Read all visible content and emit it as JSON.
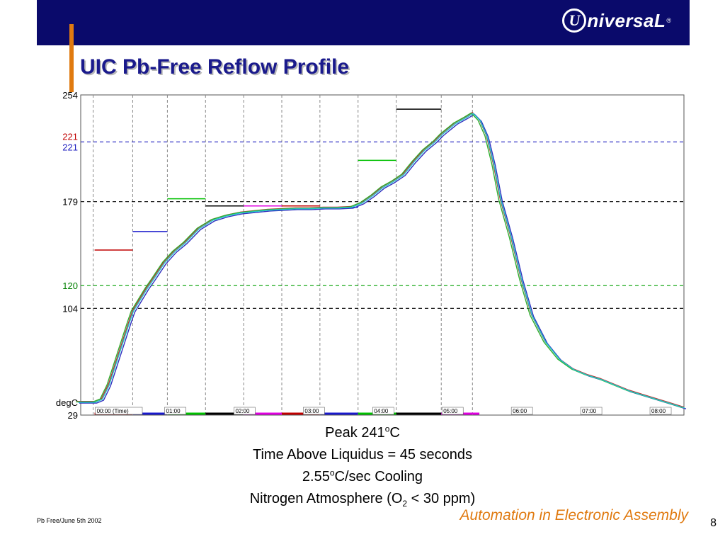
{
  "header": {
    "logo_mark": "U",
    "logo_text": "niversaL",
    "logo_reg": "®",
    "slide_title": "UIC Pb-Free Reflow Profile"
  },
  "chart_data": {
    "type": "line",
    "ylabel": "degC",
    "ylim": [
      29,
      254
    ],
    "xlim": [
      -0.2,
      8.5
    ],
    "x_unit": "minutes",
    "x_tick_labels": [
      {
        "x": 0,
        "label": "00:00 (Time)"
      },
      {
        "x": 1,
        "label": "01:00"
      },
      {
        "x": 2,
        "label": "02:00"
      },
      {
        "x": 3,
        "label": "03:00"
      },
      {
        "x": 4,
        "label": "04:00"
      },
      {
        "x": 5,
        "label": "05:00"
      },
      {
        "x": 6,
        "label": "06:00"
      },
      {
        "x": 7,
        "label": "07:00"
      },
      {
        "x": 8,
        "label": "08:00"
      }
    ],
    "y_labels": [
      {
        "value": 254,
        "label": "254",
        "color": "#000000"
      },
      {
        "value": 221,
        "label": "221",
        "color": "#c00000"
      },
      {
        "value": 221,
        "label": "221",
        "color": "#2020c0"
      },
      {
        "value": 179,
        "label": "179",
        "color": "#000000"
      },
      {
        "value": 120,
        "label": "120",
        "color": "#008000"
      },
      {
        "value": 104,
        "label": "104",
        "color": "#000000"
      },
      {
        "value": 29,
        "label": "29",
        "color": "#000000"
      }
    ],
    "reference_lines": [
      {
        "y": 221,
        "color": "#2020c0"
      },
      {
        "y": 179,
        "color": "#000000"
      },
      {
        "y": 120,
        "color": "#00a000"
      },
      {
        "y": 104,
        "color": "#000000"
      }
    ],
    "zone_boundaries": [
      -0.02,
      0.55,
      1.05,
      1.6,
      2.15,
      2.7,
      3.25,
      3.8,
      4.35,
      5.0,
      5.45
    ],
    "zone_setpoints": [
      {
        "x1": 0.0,
        "x2": 0.55,
        "y": 145,
        "color": "#c00000"
      },
      {
        "x1": 0.55,
        "x2": 1.05,
        "y": 158,
        "color": "#1a1acc"
      },
      {
        "x1": 1.05,
        "x2": 1.6,
        "y": 181,
        "color": "#00c000"
      },
      {
        "x1": 1.6,
        "x2": 2.15,
        "y": 176,
        "color": "#000000"
      },
      {
        "x1": 2.15,
        "x2": 2.7,
        "y": 176,
        "color": "#e000e0"
      },
      {
        "x1": 2.7,
        "x2": 3.25,
        "y": 176,
        "color": "#c00000"
      },
      {
        "x1": 3.25,
        "x2": 3.8,
        "y": 175,
        "color": "#1a1acc"
      },
      {
        "x1": 3.8,
        "x2": 4.35,
        "y": 208,
        "color": "#00c000"
      },
      {
        "x1": 4.35,
        "x2": 5.0,
        "y": 244,
        "color": "#000000"
      }
    ],
    "zone_bars": [
      {
        "x1": 0.0,
        "x2": 0.55,
        "color": "#c00000"
      },
      {
        "x1": 0.55,
        "x2": 1.05,
        "color": "#1a1acc"
      },
      {
        "x1": 1.05,
        "x2": 1.6,
        "color": "#00c000"
      },
      {
        "x1": 1.6,
        "x2": 2.15,
        "color": "#000000"
      },
      {
        "x1": 2.15,
        "x2": 2.7,
        "color": "#e000e0"
      },
      {
        "x1": 2.7,
        "x2": 3.25,
        "color": "#c00000"
      },
      {
        "x1": 3.25,
        "x2": 3.8,
        "color": "#1a1acc"
      },
      {
        "x1": 3.8,
        "x2": 4.35,
        "color": "#00c000"
      },
      {
        "x1": 4.35,
        "x2": 5.0,
        "color": "#000000"
      },
      {
        "x1": 5.0,
        "x2": 5.55,
        "color": "#e000e0"
      }
    ],
    "series": [
      {
        "color": "#c03030",
        "offset": 0.0,
        "dy": 0.6
      },
      {
        "color": "#3030c0",
        "offset": 0.03,
        "dy": -0.6
      },
      {
        "color": "#30b030",
        "offset": -0.02,
        "dy": 0.3
      },
      {
        "color": "#20c8c8",
        "offset": 0.01,
        "dy": 0.0
      }
    ],
    "profile": {
      "x": [
        -0.25,
        0.0,
        0.1,
        0.2,
        0.3,
        0.4,
        0.5,
        0.55,
        0.65,
        0.75,
        0.85,
        1.0,
        1.15,
        1.3,
        1.5,
        1.7,
        1.9,
        2.1,
        2.3,
        2.5,
        2.7,
        2.9,
        3.1,
        3.3,
        3.5,
        3.7,
        3.85,
        4.0,
        4.15,
        4.3,
        4.45,
        4.6,
        4.75,
        4.9,
        5.0,
        5.1,
        5.2,
        5.35,
        5.45,
        5.55,
        5.65,
        5.75,
        5.85,
        6.0,
        6.15,
        6.3,
        6.5,
        6.7,
        6.9,
        7.1,
        7.3,
        7.5,
        7.7,
        7.9,
        8.1,
        8.3,
        8.5
      ],
      "y": [
        38,
        38,
        40,
        50,
        65,
        80,
        95,
        102,
        110,
        118,
        125,
        136,
        144,
        150,
        160,
        166,
        169,
        171,
        172,
        173,
        173.5,
        174,
        174,
        174.5,
        174.5,
        175,
        178,
        183,
        189,
        193,
        198,
        207,
        215,
        221,
        226,
        230,
        234,
        238,
        241,
        236,
        225,
        205,
        180,
        154,
        124,
        99,
        80,
        68,
        61,
        57,
        54,
        50,
        46,
        43,
        40,
        37,
        34
      ]
    }
  },
  "notes": {
    "line1_prefix": "Peak 241",
    "line1_sup": "o",
    "line1_suffix": "C",
    "line2": "Time Above Liquidus = 45 seconds",
    "line3_prefix": "2.55",
    "line3_sup": "o",
    "line3_suffix": "C/sec Cooling",
    "line4_prefix": "Nitrogen Atmosphere (O",
    "line4_sub": "2",
    "line4_suffix": " < 30 ppm)"
  },
  "footer": {
    "left_text": "Pb Free/June 5th 2002",
    "tagline": "Automation in Electronic Assembly",
    "page_number": "8"
  }
}
